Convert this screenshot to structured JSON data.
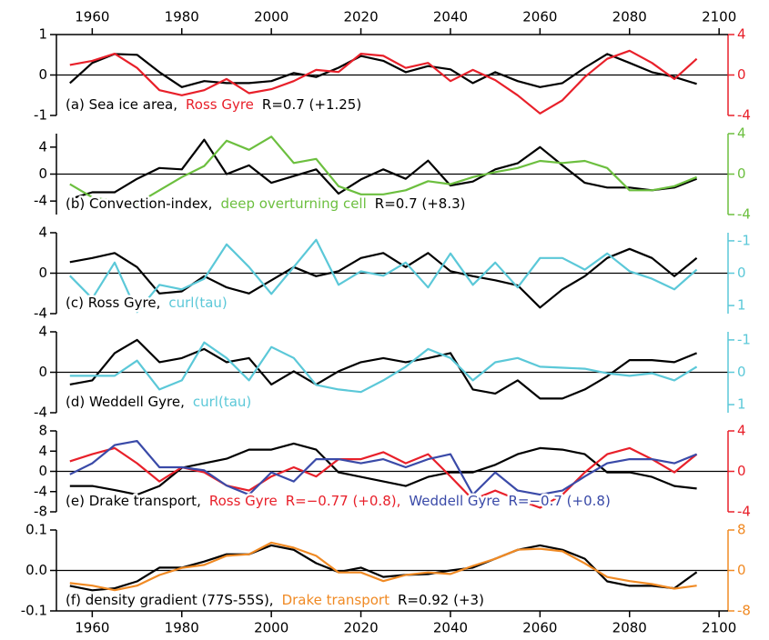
{
  "chart_data": [
    {
      "type": "line",
      "x": [
        1955,
        1960,
        1965,
        1970,
        1975,
        1980,
        1985,
        1990,
        1995,
        2000,
        2005,
        2010,
        2015,
        2020,
        2025,
        2030,
        2035,
        2040,
        2045,
        2050,
        2055,
        2060,
        2065,
        2070,
        2075,
        2080,
        2085,
        2090,
        2095
      ],
      "xlim": [
        1952,
        2102
      ],
      "xticks": [
        1960,
        1980,
        2000,
        2020,
        2040,
        2060,
        2080,
        2100
      ],
      "xaxis_position": "top",
      "ylim": [
        -1,
        1
      ],
      "yticks": [
        -1,
        0,
        1
      ],
      "y2lim": [
        -4,
        4
      ],
      "y2ticks": [
        -4,
        0,
        4
      ],
      "series": [
        {
          "name": "(a) Sea ice area,",
          "color": "#000000",
          "values": [
            -0.2,
            0.3,
            0.52,
            0.5,
            0.07,
            -0.3,
            -0.15,
            -0.2,
            -0.2,
            -0.15,
            0.05,
            -0.05,
            0.18,
            0.47,
            0.35,
            0.07,
            0.22,
            0.14,
            -0.2,
            0.07,
            -0.15,
            -0.3,
            -0.2,
            0.18,
            0.52,
            0.3,
            0.07,
            -0.05,
            -0.22
          ]
        },
        {
          "name": "Ross Gyre",
          "color": "#e8202a",
          "axis": "y2",
          "values": [
            1.0,
            1.4,
            2.1,
            0.7,
            -1.5,
            -2.0,
            -1.5,
            -0.4,
            -1.8,
            -1.4,
            -0.6,
            0.5,
            0.3,
            2.1,
            1.9,
            0.7,
            1.2,
            -0.6,
            0.5,
            -0.5,
            -2.0,
            -3.8,
            -2.5,
            -0.2,
            1.6,
            2.4,
            1.2,
            -0.4,
            1.6
          ]
        }
      ],
      "annotation": "R=0.7 (+1.25)"
    },
    {
      "type": "line",
      "x": [
        1955,
        1960,
        1965,
        1970,
        1975,
        1980,
        1985,
        1990,
        1995,
        2000,
        2005,
        2010,
        2015,
        2020,
        2025,
        2030,
        2035,
        2040,
        2045,
        2050,
        2055,
        2060,
        2065,
        2070,
        2075,
        2080,
        2085,
        2090,
        2095
      ],
      "xlim": [
        1952,
        2102
      ],
      "ylim": [
        -6,
        6
      ],
      "yticks": [
        -4,
        0,
        4
      ],
      "y2lim": [
        -4,
        4
      ],
      "y2ticks": [
        -4,
        0,
        4
      ],
      "series": [
        {
          "name": "(b) Convection-index,",
          "color": "#000000",
          "values": [
            -3.7,
            -2.7,
            -2.7,
            -0.7,
            0.9,
            0.7,
            5.1,
            0,
            1.3,
            -1.3,
            -0.3,
            0.7,
            -2.9,
            -0.8,
            0.7,
            -0.7,
            2.0,
            -1.7,
            -1.1,
            0.7,
            1.6,
            4.0,
            1.3,
            -1.3,
            -2.0,
            -2.0,
            -2.4,
            -2.0,
            -0.7
          ]
        },
        {
          "name": "deep overturning cell",
          "color": "#6cbf3f",
          "axis": "y2",
          "values": [
            -1.0,
            -2.3,
            -2.7,
            -2.9,
            -1.6,
            -0.3,
            0.8,
            3.3,
            2.4,
            3.7,
            1.1,
            1.5,
            -1.2,
            -2.0,
            -2.0,
            -1.6,
            -0.7,
            -1.0,
            -0.3,
            0.2,
            0.6,
            1.3,
            1.1,
            1.3,
            0.6,
            -1.6,
            -1.6,
            -1.2,
            -0.3
          ]
        }
      ],
      "annotation": "R=0.7 (+8.3)"
    },
    {
      "type": "line",
      "x": [
        1955,
        1960,
        1965,
        1970,
        1975,
        1980,
        1985,
        1990,
        1995,
        2000,
        2005,
        2010,
        2015,
        2020,
        2025,
        2030,
        2035,
        2040,
        2045,
        2050,
        2055,
        2060,
        2065,
        2070,
        2075,
        2080,
        2085,
        2090,
        2095
      ],
      "xlim": [
        1952,
        2102
      ],
      "ylim": [
        -4,
        4
      ],
      "yticks": [
        -4,
        0,
        4
      ],
      "y2lim": [
        1.25,
        -1.25
      ],
      "y2ticks": [
        -1,
        0,
        1
      ],
      "series": [
        {
          "name": "(c) Ross Gyre,",
          "color": "#000000",
          "values": [
            1.1,
            1.5,
            2.0,
            0.6,
            -2.0,
            -1.8,
            -0.3,
            -1.4,
            -2.0,
            -0.7,
            0.6,
            -0.3,
            0.2,
            1.5,
            2.0,
            0.6,
            2.0,
            0.2,
            -0.3,
            -0.7,
            -1.2,
            -3.4,
            -1.6,
            -0.3,
            1.5,
            2.4,
            1.5,
            -0.3,
            1.5
          ]
        },
        {
          "name": "curl(tau)",
          "color": "#5bc8d8",
          "axis": "y2",
          "values": [
            0.08,
            0.78,
            -0.33,
            1.2,
            0.36,
            0.5,
            0.17,
            -0.89,
            -0.19,
            0.64,
            -0.19,
            -1.03,
            0.36,
            -0.06,
            0.08,
            -0.33,
            0.44,
            -0.61,
            0.36,
            -0.33,
            0.44,
            -0.47,
            -0.47,
            -0.11,
            -0.61,
            -0.06,
            0.17,
            0.5,
            -0.11
          ]
        }
      ]
    },
    {
      "type": "line",
      "x": [
        1955,
        1960,
        1965,
        1970,
        1975,
        1980,
        1985,
        1990,
        1995,
        2000,
        2005,
        2010,
        2015,
        2020,
        2025,
        2030,
        2035,
        2040,
        2045,
        2050,
        2055,
        2060,
        2065,
        2070,
        2075,
        2080,
        2085,
        2090,
        2095
      ],
      "xlim": [
        1952,
        2102
      ],
      "ylim": [
        -4,
        4
      ],
      "yticks": [
        -4,
        0,
        4
      ],
      "y2lim": [
        1.25,
        -1.25
      ],
      "y2ticks": [
        -1,
        0,
        1
      ],
      "series": [
        {
          "name": "(d) Weddell Gyre,",
          "color": "#000000",
          "values": [
            -1.2,
            -0.8,
            1.9,
            3.2,
            1.0,
            1.4,
            2.3,
            1.0,
            1.4,
            -1.2,
            0.1,
            -1.2,
            0.1,
            1.0,
            1.4,
            1.0,
            1.4,
            1.9,
            -1.7,
            -2.1,
            -0.8,
            -2.6,
            -2.6,
            -1.7,
            -0.4,
            1.2,
            1.2,
            1.0,
            1.9
          ]
        },
        {
          "name": "curl(tau)",
          "color": "#5bc8d8",
          "axis": "y2",
          "values": [
            0.11,
            0.11,
            0.11,
            -0.36,
            0.53,
            0.25,
            -0.92,
            -0.44,
            0.25,
            -0.78,
            -0.44,
            0.39,
            0.53,
            0.61,
            0.25,
            -0.17,
            -0.72,
            -0.44,
            0.25,
            -0.31,
            -0.44,
            -0.17,
            -0.14,
            -0.11,
            0.03,
            0.11,
            0.03,
            0.25,
            -0.17
          ]
        }
      ]
    },
    {
      "type": "line",
      "x": [
        1955,
        1960,
        1965,
        1970,
        1975,
        1980,
        1985,
        1990,
        1995,
        2000,
        2005,
        2010,
        2015,
        2020,
        2025,
        2030,
        2035,
        2040,
        2045,
        2050,
        2055,
        2060,
        2065,
        2070,
        2075,
        2080,
        2085,
        2090,
        2095
      ],
      "xlim": [
        1952,
        2102
      ],
      "ylim": [
        -8,
        8
      ],
      "yticks": [
        -8,
        -4,
        0,
        4,
        8
      ],
      "y2lim": [
        -4,
        4
      ],
      "y2ticks": [
        -4,
        0,
        4
      ],
      "series": [
        {
          "name": "(e) Drake transport,",
          "color": "#000000",
          "values": [
            -2.9,
            -2.9,
            -3.7,
            -4.6,
            -2.9,
            0.7,
            1.6,
            2.5,
            4.3,
            4.3,
            5.5,
            4.3,
            -0.2,
            -1.1,
            -2.0,
            -2.9,
            -1.1,
            -0.2,
            -0.2,
            1.3,
            3.4,
            4.6,
            4.3,
            3.4,
            -0.2,
            -0.2,
            -1.1,
            -2.9,
            -3.4
          ]
        },
        {
          "name": "Ross Gyre",
          "annotation": "R=−0.77 (+0.8),",
          "color": "#e8202a",
          "axis": "y2",
          "values": [
            1.0,
            1.7,
            2.3,
            0.8,
            -1.0,
            0.4,
            -0.1,
            -1.4,
            -1.9,
            -0.5,
            0.4,
            -0.5,
            1.2,
            1.2,
            1.9,
            0.8,
            1.7,
            -0.5,
            -2.8,
            -1.9,
            -2.8,
            -3.6,
            -2.3,
            -0.1,
            1.7,
            2.3,
            1.2,
            -0.1,
            1.7
          ]
        },
        {
          "name": "Weddell Gyre",
          "annotation": "R=−0.7 (+0.8)",
          "color": "#3a4aa8",
          "axis": "y2",
          "values": [
            -0.3,
            0.8,
            2.6,
            3.0,
            0.4,
            0.4,
            0.1,
            -1.4,
            -2.3,
            -0.1,
            -1.0,
            1.2,
            1.2,
            0.8,
            1.2,
            0.4,
            1.2,
            1.7,
            -2.3,
            -0.1,
            -1.9,
            -2.3,
            -1.9,
            -0.5,
            0.8,
            1.2,
            1.2,
            0.8,
            1.7
          ]
        }
      ]
    },
    {
      "type": "line",
      "x": [
        1955,
        1960,
        1965,
        1970,
        1975,
        1980,
        1985,
        1990,
        1995,
        2000,
        2005,
        2010,
        2015,
        2020,
        2025,
        2030,
        2035,
        2040,
        2045,
        2050,
        2055,
        2060,
        2065,
        2070,
        2075,
        2080,
        2085,
        2090,
        2095
      ],
      "xlim": [
        1952,
        2102
      ],
      "xticks": [
        1960,
        1980,
        2000,
        2020,
        2040,
        2060,
        2080,
        2100
      ],
      "xaxis_position": "bottom",
      "ylim": [
        -0.1,
        0.1
      ],
      "yticks": [
        -0.1,
        {
          "value": 0,
          "label": "0.0"
        },
        0.1
      ],
      "y2lim": [
        -8,
        8
      ],
      "y2ticks": [
        -8,
        0,
        8
      ],
      "series": [
        {
          "name": "(f) density gradient (77S-55S),",
          "color": "#000000",
          "values": [
            -0.038,
            -0.049,
            -0.044,
            -0.027,
            0.007,
            0.007,
            0.022,
            0.04,
            0.04,
            0.062,
            0.051,
            0.018,
            -0.004,
            0.007,
            -0.016,
            -0.011,
            -0.009,
            0,
            0.007,
            0.029,
            0.051,
            0.062,
            0.051,
            0.029,
            -0.027,
            -0.038,
            -0.038,
            -0.044,
            -0.004
          ]
        },
        {
          "name": "Drake transport",
          "color": "#f08a24",
          "axis": "y2",
          "values": [
            -2.5,
            -3.0,
            -3.9,
            -3.0,
            -0.9,
            0.5,
            1.1,
            2.9,
            3.2,
            5.5,
            4.5,
            2.9,
            -0.4,
            -0.4,
            -2.1,
            -0.9,
            -0.4,
            -0.7,
            0.9,
            2.3,
            4.1,
            4.3,
            3.8,
            1.4,
            -1.3,
            -2.1,
            -2.7,
            -3.6,
            -3.0
          ]
        }
      ],
      "annotation": "R=0.92 (+3)"
    }
  ]
}
